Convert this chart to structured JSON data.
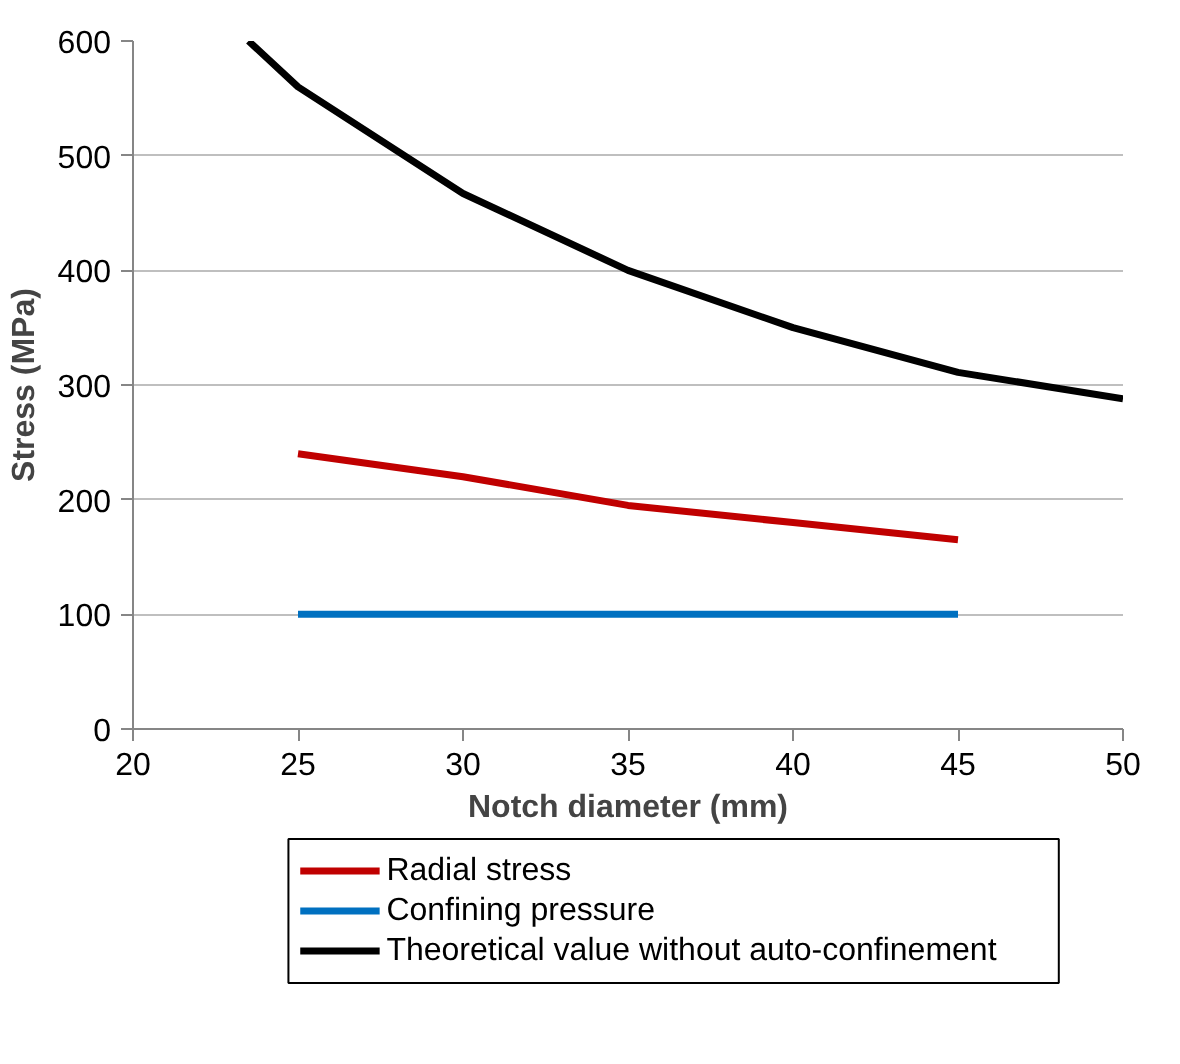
{
  "chart_data": {
    "type": "line",
    "xlabel": "Notch diameter (mm)",
    "ylabel": "Stress (MPa)",
    "xlim": [
      20,
      50
    ],
    "xticks": [
      20,
      25,
      30,
      35,
      40,
      45,
      50
    ],
    "ylim": [
      0,
      600
    ],
    "yticks": [
      0,
      100,
      200,
      300,
      400,
      500,
      600
    ],
    "grid": "y",
    "legend": "bottom",
    "line_style": "solid",
    "series": [
      {
        "name": "Radial stress",
        "color": "#c00000",
        "x": [
          25,
          30,
          35,
          40,
          45
        ],
        "values": [
          240,
          220,
          195,
          180,
          165
        ]
      },
      {
        "name": "Confining pressure",
        "color": "#0070c0",
        "x": [
          25,
          30,
          35,
          40,
          45
        ],
        "values": [
          100,
          100,
          100,
          100,
          100
        ]
      },
      {
        "name": "Theoretical value without auto-confinement",
        "color": "#000000",
        "x": [
          23.5,
          25,
          30,
          35,
          40,
          45,
          50
        ],
        "values": [
          600,
          560,
          467,
          400,
          350,
          311,
          288
        ]
      }
    ]
  }
}
